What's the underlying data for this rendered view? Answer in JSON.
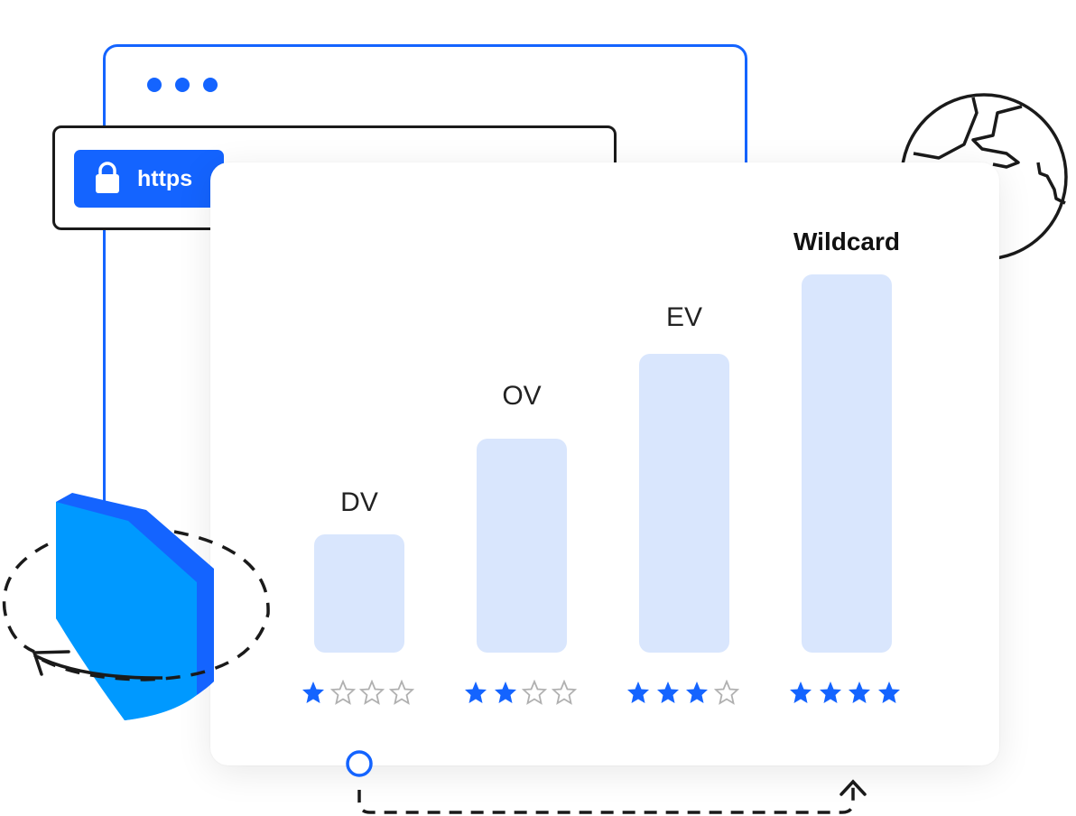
{
  "browser": {
    "protocol_label": "https",
    "lock_icon": "lock-icon"
  },
  "colors": {
    "accent": "#1464ff",
    "bar": "#d9e6fd",
    "shield": "#0099ff",
    "star_empty": "#b0b0b0"
  },
  "certificates": [
    {
      "label": "DV",
      "rating": 1,
      "max_rating": 4,
      "bold": false
    },
    {
      "label": "OV",
      "rating": 2,
      "max_rating": 4,
      "bold": false
    },
    {
      "label": "EV",
      "rating": 3,
      "max_rating": 4,
      "bold": false
    },
    {
      "label": "Wildcard",
      "rating": 4,
      "max_rating": 4,
      "bold": true
    }
  ]
}
